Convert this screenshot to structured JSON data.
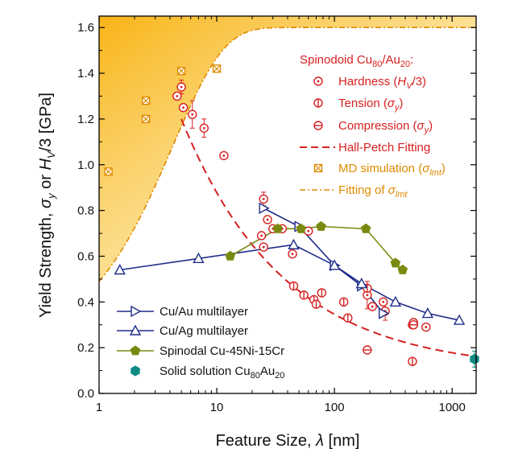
{
  "chart_data": {
    "type": "scatter",
    "xscale": "log",
    "xlim": [
      1,
      1600
    ],
    "ylim": [
      0.0,
      1.65
    ],
    "xlabel": "Feature Size, λ  [nm]",
    "ylabel": "Yield Strength, σy or HV/3  [GPa]",
    "ylabel_parts": [
      "Yield Strength, ",
      "σ",
      "y",
      " or ",
      "H",
      "V",
      "/3  [GPa]"
    ],
    "xlabel_parts": [
      "Feature Size, ",
      "λ",
      "  [nm]"
    ],
    "x_ticks": [
      {
        "value": 1,
        "label": "1"
      },
      {
        "value": 10,
        "label": "10"
      },
      {
        "value": 100,
        "label": "100"
      },
      {
        "value": 1000,
        "label": "1000"
      }
    ],
    "y_ticks": [
      "0.0",
      "0.2",
      "0.4",
      "0.6",
      "0.8",
      "1.0",
      "1.2",
      "1.4",
      "1.6"
    ],
    "legend_top_right": {
      "title_parts": [
        "Spinodoid Cu",
        "80",
        "/Au",
        "20",
        ":"
      ],
      "hardness_parts": [
        "Hardness (",
        "H",
        "V",
        "/3)"
      ],
      "tension_parts": [
        "Tension (",
        "σ",
        "y",
        ")"
      ],
      "compression_parts": [
        "Compression (",
        "σ",
        "y",
        ")"
      ],
      "hall_petch": "Hall-Petch Fitting",
      "md_parts": [
        "MD simulation (",
        "σ",
        "lmt",
        ")"
      ],
      "fitting_parts": [
        "Fitting of ",
        "σ",
        "lmt"
      ]
    },
    "legend_bottom_left": {
      "cuau": "Cu/Au multilayer",
      "cuag": "Cu/Ag multilayer",
      "spinodal": "Spinodal Cu-45Ni-15Cr",
      "solid_parts": [
        "Solid solution Cu",
        "80",
        "Au",
        "20"
      ]
    },
    "colors": {
      "red": "#d62020",
      "orange": "#e08a00",
      "navy": "#1f2d8a",
      "olive": "#7a8a10",
      "teal": "#0e8a82",
      "fill_top": "#f9b417"
    },
    "series": [
      {
        "name": "Hardness (HV/3)",
        "marker": "circle-dot",
        "points": [
          [
            4.6,
            1.3
          ],
          [
            5.0,
            1.34
          ],
          [
            5.2,
            1.25
          ],
          [
            6.2,
            1.22
          ],
          [
            7.8,
            1.16
          ],
          [
            11.5,
            1.04
          ],
          [
            24,
            0.69
          ],
          [
            25,
            0.85
          ],
          [
            25,
            0.64
          ],
          [
            27,
            0.76
          ],
          [
            30,
            0.72
          ],
          [
            36,
            0.72
          ],
          [
            44,
            0.61
          ],
          [
            60,
            0.71
          ],
          [
            190,
            0.43
          ],
          [
            210,
            0.38
          ],
          [
            260,
            0.4
          ],
          [
            270,
            0.36
          ],
          [
            460,
            0.3
          ],
          [
            470,
            0.31
          ],
          [
            600,
            0.29
          ]
        ],
        "errors": [
          [
            5.0,
            0.03
          ],
          [
            6.2,
            0.06
          ],
          [
            7.8,
            0.04
          ],
          [
            25,
            0.03
          ],
          [
            190,
            0.06
          ],
          [
            270,
            0.04
          ]
        ]
      },
      {
        "name": "Tension (σy)",
        "marker": "circle-vbar",
        "points": [
          [
            45,
            0.47
          ],
          [
            55,
            0.43
          ],
          [
            67,
            0.41
          ],
          [
            70,
            0.39
          ],
          [
            78,
            0.44
          ],
          [
            120,
            0.4
          ],
          [
            130,
            0.33
          ],
          [
            190,
            0.46
          ],
          [
            460,
            0.14
          ]
        ]
      },
      {
        "name": "Compression (σy)",
        "marker": "circle-hbar",
        "points": [
          [
            190,
            0.19
          ],
          [
            470,
            0.3
          ]
        ]
      },
      {
        "name": "MD simulation (σlmt)",
        "marker": "boxed-x",
        "points": [
          [
            1.2,
            0.97
          ],
          [
            2.5,
            1.2
          ],
          [
            2.5,
            1.28
          ],
          [
            5.0,
            1.41
          ],
          [
            10,
            1.42
          ]
        ]
      },
      {
        "name": "Cu/Au multilayer",
        "marker": "triangle-right",
        "points": [
          [
            25,
            0.81
          ],
          [
            50,
            0.73
          ],
          [
            100,
            0.56
          ],
          [
            170,
            0.47
          ],
          [
            260,
            0.35
          ]
        ]
      },
      {
        "name": "Cu/Ag multilayer",
        "marker": "triangle-up",
        "points": [
          [
            1.5,
            0.54
          ],
          [
            7,
            0.59
          ],
          [
            45,
            0.65
          ],
          [
            100,
            0.56
          ],
          [
            170,
            0.48
          ],
          [
            330,
            0.4
          ],
          [
            620,
            0.35
          ],
          [
            1150,
            0.32
          ]
        ]
      },
      {
        "name": "Spinodal Cu-45Ni-15Cr",
        "marker": "pentagon",
        "points": [
          [
            13,
            0.6
          ],
          [
            33,
            0.72
          ],
          [
            52,
            0.72
          ],
          [
            77,
            0.73
          ],
          [
            185,
            0.72
          ],
          [
            330,
            0.57
          ],
          [
            380,
            0.54
          ]
        ]
      },
      {
        "name": "Solid solution Cu80Au20",
        "marker": "hexagon",
        "points": [
          [
            1550,
            0.15
          ]
        ],
        "errors": [
          [
            1550,
            0.035
          ]
        ]
      }
    ],
    "fits": [
      {
        "name": "Hall-Petch Fitting",
        "equation": "y = 0.1 + 2.46 / sqrt(x)",
        "x_range": [
          5,
          1600
        ]
      },
      {
        "name": "Fitting of σlmt",
        "equation": "y = 1.6 - 1.11 * exp(-0.236 * (x - 1))",
        "x_range": [
          1,
          1600
        ]
      }
    ]
  }
}
